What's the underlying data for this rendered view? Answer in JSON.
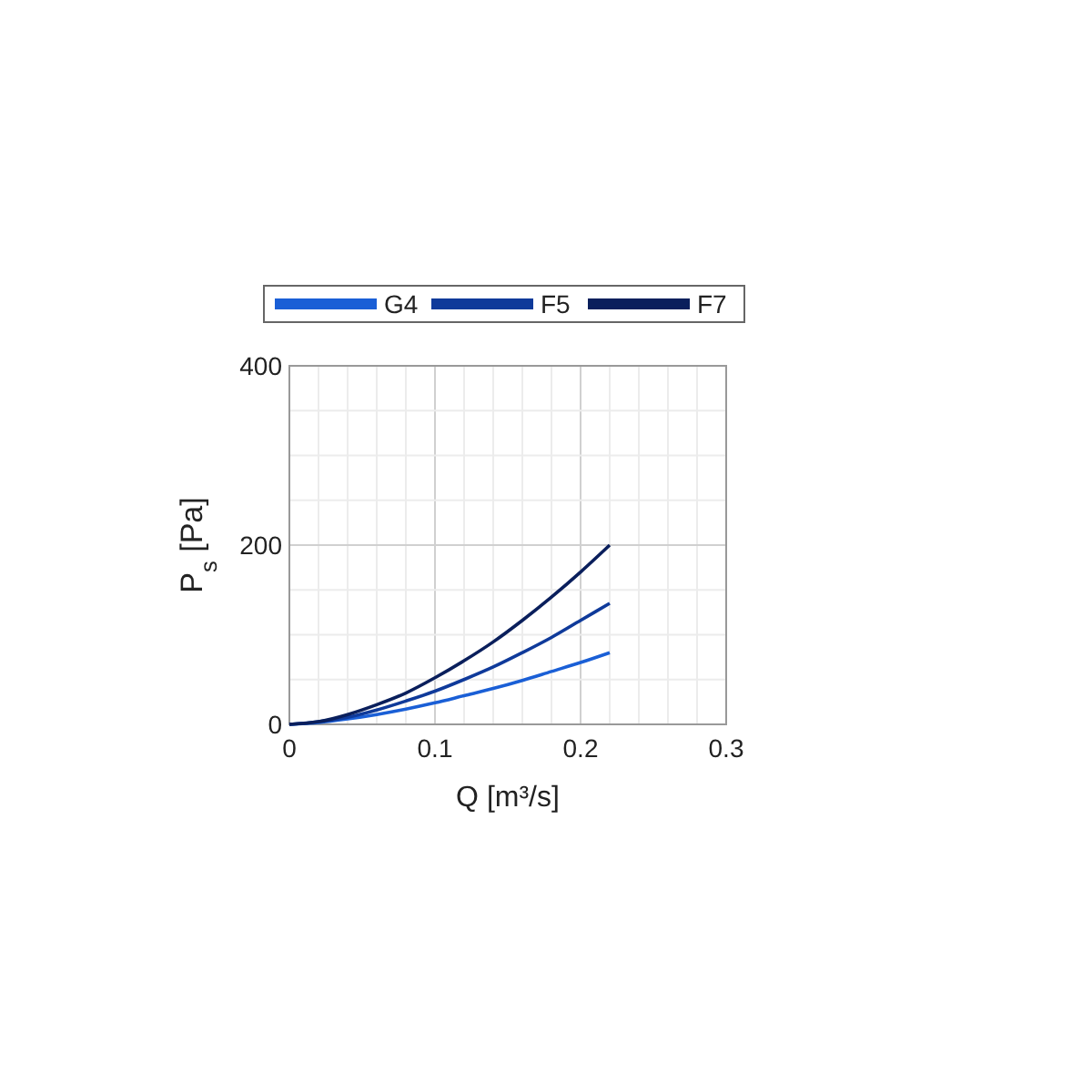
{
  "chart_data": {
    "type": "line",
    "xlabel": "Q [m³/s]",
    "ylabel": "P$_{s}$ [Pa]",
    "x": [
      0,
      0.02,
      0.04,
      0.06,
      0.08,
      0.1,
      0.12,
      0.14,
      0.16,
      0.18,
      0.2,
      0.22
    ],
    "series": [
      {
        "name": "G4",
        "color": "#1a5fd6",
        "values": [
          0,
          2,
          6,
          11,
          17,
          24,
          32,
          40,
          49,
          59,
          69,
          80
        ]
      },
      {
        "name": "F5",
        "color": "#0f3a9a",
        "values": [
          0,
          3,
          8,
          16,
          26,
          37,
          50,
          64,
          80,
          97,
          116,
          135
        ]
      },
      {
        "name": "F7",
        "color": "#0a1f5c",
        "values": [
          0,
          3,
          11,
          22,
          35,
          52,
          71,
          92,
          116,
          142,
          170,
          200
        ]
      }
    ],
    "xlim": [
      0,
      0.3
    ],
    "xticks": [
      0,
      {
        "value": 0.02,
        "label": null
      },
      {
        "value": 0.04,
        "label": null
      },
      {
        "value": 0.06,
        "label": null
      },
      {
        "value": 0.08,
        "label": null
      },
      0.1,
      {
        "value": 0.12,
        "label": null
      },
      {
        "value": 0.14,
        "label": null
      },
      {
        "value": 0.16,
        "label": null
      },
      {
        "value": 0.18,
        "label": null
      },
      0.2,
      {
        "value": 0.22,
        "label": null
      },
      {
        "value": 0.24,
        "label": null
      },
      {
        "value": 0.26,
        "label": null
      },
      {
        "value": 0.28,
        "label": null
      },
      0.3
    ],
    "ylim": [
      0,
      400
    ],
    "yticks": [
      0,
      {
        "value": 50,
        "label": null
      },
      {
        "value": 100,
        "label": null
      },
      {
        "value": 150,
        "label": null
      },
      200,
      {
        "value": 250,
        "label": null
      },
      {
        "value": 300,
        "label": null
      },
      {
        "value": 350,
        "label": null
      },
      400
    ],
    "grid": true,
    "legend": "top",
    "marker": "none",
    "line_style": "solid"
  }
}
